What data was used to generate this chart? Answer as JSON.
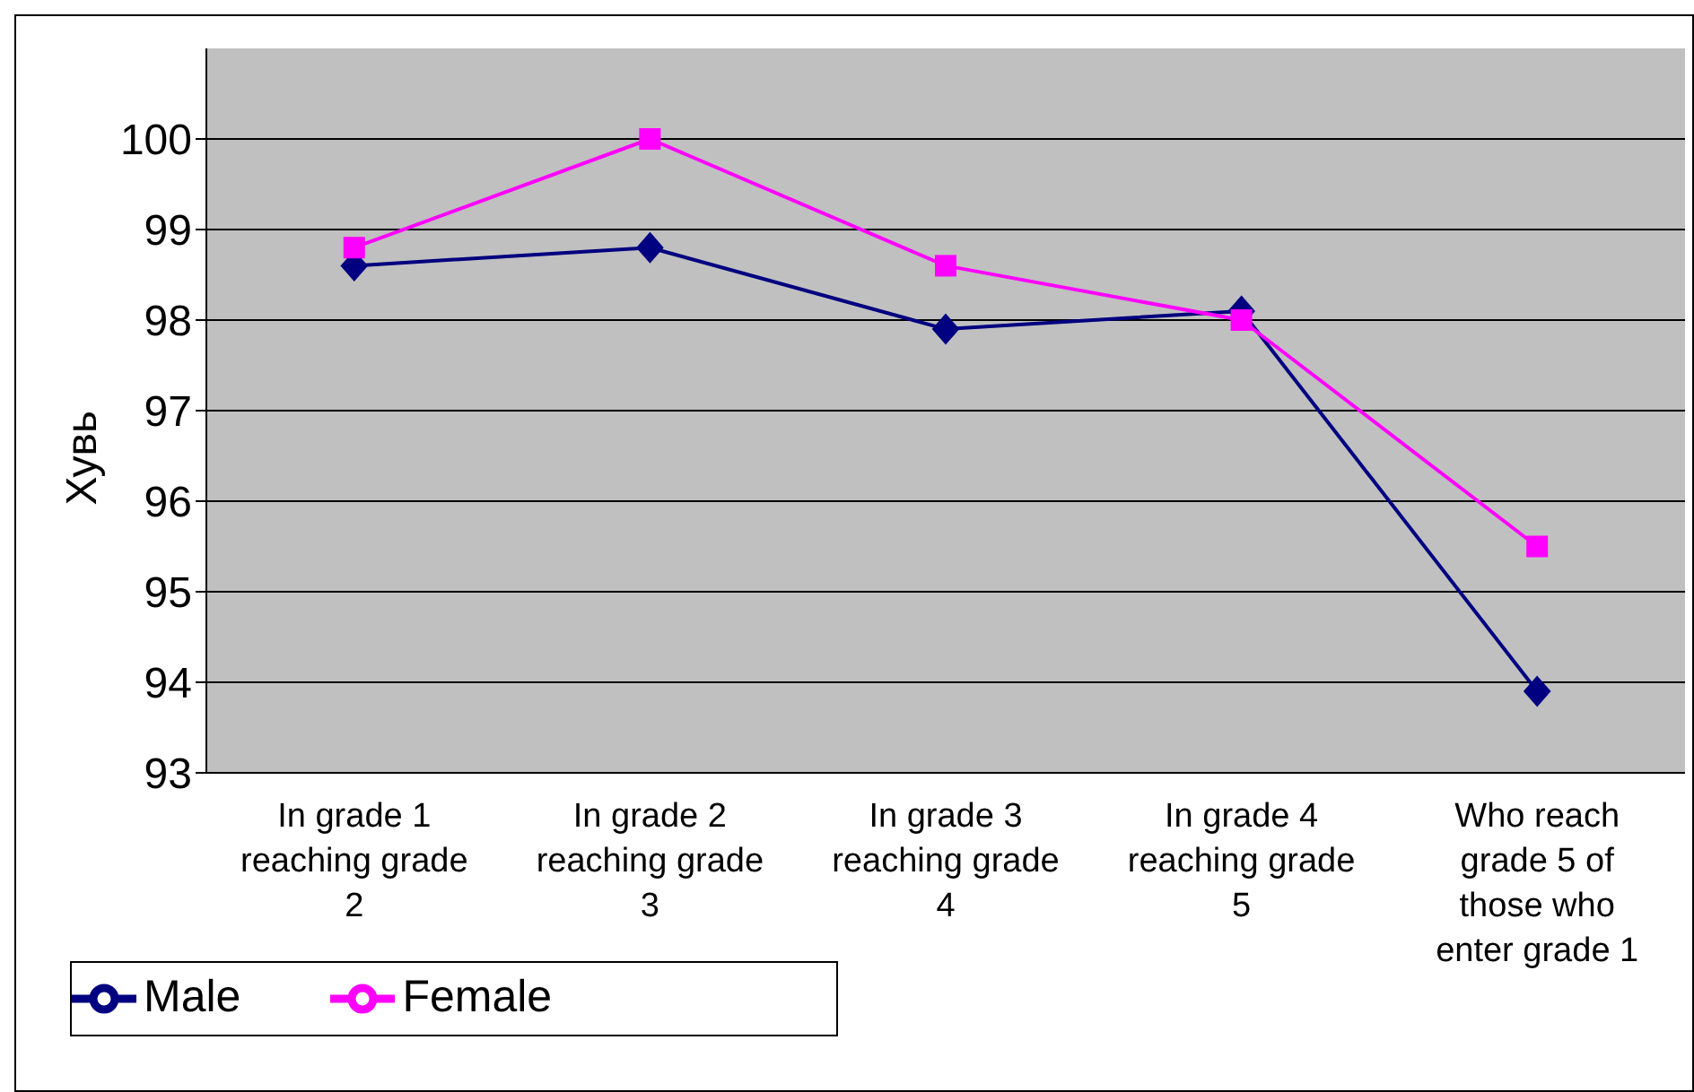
{
  "chart_data": {
    "type": "line",
    "ylabel": "Хувь",
    "categories": [
      "In grade 1 reaching grade 2",
      "In grade 2 reaching grade 3",
      "In grade 3 reaching grade 4",
      "In grade 4 reaching grade 5",
      "Who reach grade 5 of those who enter grade 1"
    ],
    "series": [
      {
        "name": "Male",
        "color": "#000080",
        "marker": "diamond",
        "values": [
          98.6,
          98.8,
          97.9,
          98.1,
          93.9
        ]
      },
      {
        "name": "Female",
        "color": "#ff00ff",
        "marker": "square",
        "values": [
          98.8,
          100,
          98.6,
          98.0,
          95.5
        ]
      }
    ],
    "ylim": [
      93,
      101
    ],
    "yticks": [
      93,
      94,
      95,
      96,
      97,
      98,
      99,
      100
    ],
    "grid": "y",
    "legend": "bottom left"
  }
}
